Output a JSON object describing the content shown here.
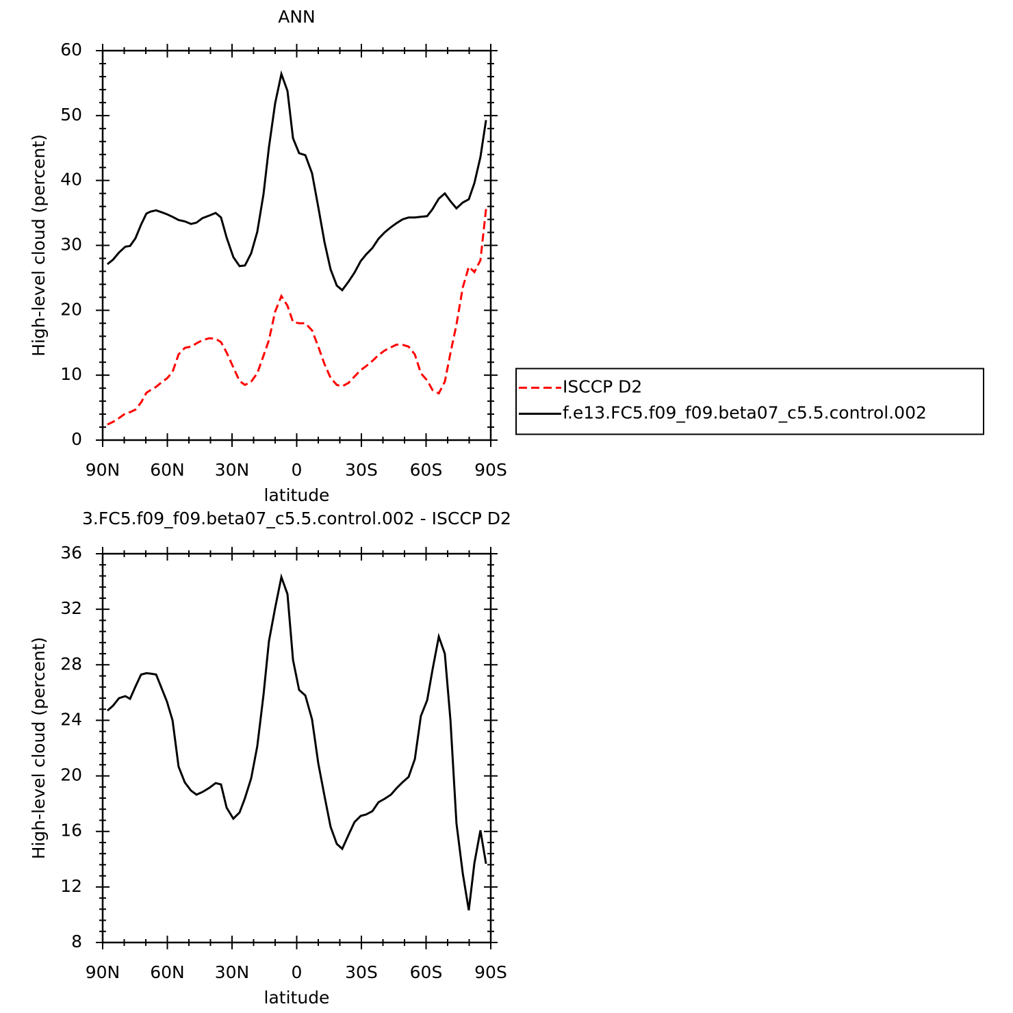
{
  "chart_data": [
    {
      "type": "line",
      "title": "ANN",
      "xlabel": "latitude",
      "ylabel": "High-level cloud (percent)",
      "x": [
        87.8,
        85.2,
        82.4,
        79.5,
        77.3,
        74.8,
        72.2,
        69.7,
        67.8,
        65.2,
        62.7,
        60.2,
        57.6,
        54.8,
        51.9,
        49.0,
        46.5,
        43.7,
        40.5,
        37.6,
        35.1,
        32.5,
        29.4,
        26.5,
        24.0,
        21.1,
        18.3,
        15.4,
        12.9,
        10.0,
        7.1,
        4.3,
        1.7,
        -1.1,
        -4.0,
        -7.1,
        -10.0,
        -12.9,
        -15.7,
        -18.6,
        -21.1,
        -24.0,
        -26.8,
        -29.7,
        -32.2,
        -35.1,
        -37.9,
        -40.8,
        -43.7,
        -46.2,
        -49.0,
        -51.9,
        -54.8,
        -57.6,
        -60.5,
        -63.0,
        -65.9,
        -68.7,
        -71.3,
        -74.1,
        -77.0,
        -79.8,
        -82.4,
        -85.2,
        -87.8
      ],
      "series": [
        {
          "name": "ISCCP D2",
          "color": "#ff0000",
          "line_style": "dashed",
          "values": [
            2.4,
            2.8,
            3.4,
            4.1,
            4.3,
            4.7,
            5.8,
            7.3,
            7.7,
            8.2,
            8.9,
            9.5,
            10.5,
            13.2,
            14.2,
            14.4,
            14.9,
            15.4,
            15.7,
            15.6,
            15.1,
            13.5,
            11.2,
            9.1,
            8.5,
            9.0,
            10.3,
            13.0,
            15.4,
            19.8,
            22.2,
            20.7,
            18.2,
            18.0,
            18.0,
            16.9,
            14.4,
            11.7,
            9.6,
            8.5,
            8.3,
            8.8,
            9.8,
            10.8,
            11.4,
            12.2,
            13.1,
            13.8,
            14.3,
            14.7,
            14.7,
            14.4,
            13.2,
            10.3,
            9.2,
            7.7,
            7.2,
            9.0,
            13.4,
            17.8,
            23.5,
            26.7,
            25.9,
            27.7,
            35.6
          ]
        },
        {
          "name": "f.e13.FC5.f09_f09.beta07_c5.5.control.002",
          "color": "#000000",
          "line_style": "solid",
          "values": [
            27.1,
            27.8,
            28.9,
            29.8,
            29.9,
            31.1,
            33.2,
            34.9,
            35.2,
            35.4,
            35.1,
            34.8,
            34.4,
            33.9,
            33.7,
            33.3,
            33.5,
            34.2,
            34.6,
            35.0,
            34.3,
            31.2,
            28.2,
            26.8,
            26.9,
            28.8,
            32.1,
            37.9,
            45.1,
            51.9,
            56.4,
            53.8,
            46.5,
            44.2,
            43.9,
            41.1,
            35.9,
            30.5,
            26.3,
            23.8,
            23.1,
            24.4,
            25.8,
            27.6,
            28.6,
            29.6,
            31.0,
            32.0,
            32.8,
            33.4,
            34.0,
            34.3,
            34.3,
            34.4,
            34.5,
            35.6,
            37.2,
            38.0,
            36.8,
            35.7,
            36.6,
            37.1,
            39.6,
            43.6,
            49.3
          ]
        }
      ],
      "xlim": [
        90,
        -90
      ],
      "xticks": [
        {
          "value": 90,
          "label": "90N"
        },
        {
          "value": 60,
          "label": "60N"
        },
        {
          "value": 30,
          "label": "30N"
        },
        0,
        {
          "value": -30,
          "label": "30S"
        },
        {
          "value": -60,
          "label": "60S"
        },
        {
          "value": -90,
          "label": "90S"
        }
      ],
      "ylim": [
        0,
        60
      ],
      "yticks": [
        0,
        10,
        20,
        30,
        40,
        50,
        60
      ],
      "legend": "right"
    },
    {
      "type": "line",
      "title": "3.FC5.f09_f09.beta07_c5.5.control.002 - ISCCP D2",
      "xlabel": "latitude",
      "ylabel": "High-level cloud (percent)",
      "x": [
        87.8,
        85.2,
        82.4,
        79.5,
        77.3,
        74.8,
        72.2,
        69.7,
        67.8,
        65.2,
        62.7,
        60.2,
        57.6,
        54.8,
        51.9,
        49.0,
        46.5,
        43.7,
        40.5,
        37.6,
        35.1,
        32.5,
        29.4,
        26.5,
        24.0,
        21.1,
        18.3,
        15.4,
        12.9,
        10.0,
        7.1,
        4.3,
        1.7,
        -1.1,
        -4.0,
        -7.1,
        -10.0,
        -12.9,
        -15.7,
        -18.6,
        -21.1,
        -24.0,
        -26.8,
        -29.7,
        -32.2,
        -35.1,
        -37.9,
        -40.8,
        -43.7,
        -46.2,
        -49.0,
        -51.9,
        -54.8,
        -57.6,
        -60.5,
        -63.0,
        -65.9,
        -68.7,
        -71.3,
        -74.1,
        -77.0,
        -79.8,
        -82.4,
        -85.2,
        -87.8
      ],
      "series": [
        {
          "color": "#000000",
          "line_style": "solid",
          "values": [
            24.7,
            25.05,
            25.6,
            25.74,
            25.55,
            26.43,
            27.3,
            27.4,
            27.37,
            27.3,
            26.33,
            25.35,
            24.0,
            20.67,
            19.53,
            18.94,
            18.65,
            18.84,
            19.14,
            19.48,
            19.38,
            17.71,
            16.92,
            17.36,
            18.4,
            19.83,
            22.14,
            25.84,
            29.69,
            32.1,
            34.32,
            33.09,
            28.35,
            26.19,
            25.79,
            24.07,
            20.91,
            18.55,
            16.33,
            15.1,
            14.75,
            15.74,
            16.67,
            17.12,
            17.22,
            17.46,
            18.1,
            18.35,
            18.65,
            19.09,
            19.53,
            19.93,
            21.21,
            24.31,
            25.45,
            27.67,
            30.03,
            28.8,
            24.02,
            16.58,
            12.98,
            10.32,
            13.72,
            16.08,
            13.67
          ]
        }
      ],
      "xlim": [
        90,
        -90
      ],
      "xticks": [
        {
          "value": 90,
          "label": "90N"
        },
        {
          "value": 60,
          "label": "60N"
        },
        {
          "value": 30,
          "label": "30N"
        },
        0,
        {
          "value": -30,
          "label": "30S"
        },
        {
          "value": -60,
          "label": "60S"
        },
        {
          "value": -90,
          "label": "90S"
        }
      ],
      "ylim": [
        8,
        36
      ],
      "yticks": [
        8,
        12,
        16,
        20,
        24,
        28,
        32,
        36
      ]
    }
  ]
}
